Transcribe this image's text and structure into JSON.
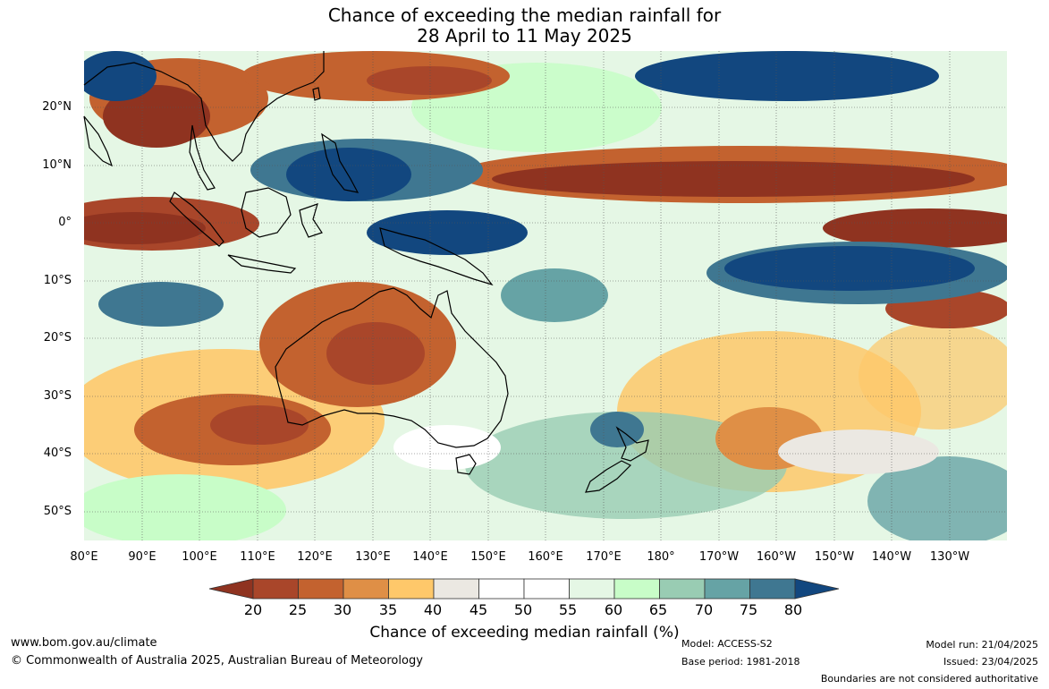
{
  "title": {
    "line1": "Chance of exceeding the median rainfall for",
    "line2": "28 April to 11 May 2025"
  },
  "map": {
    "lat_labels": [
      "20°N",
      "10°N",
      "0°",
      "10°S",
      "20°S",
      "30°S",
      "40°S",
      "50°S"
    ],
    "lon_labels": [
      "80°E",
      "90°E",
      "100°E",
      "110°E",
      "120°E",
      "130°E",
      "140°E",
      "150°E",
      "160°E",
      "170°E",
      "180°",
      "170°W",
      "160°W",
      "150°W",
      "140°W",
      "130°W"
    ]
  },
  "colorbar": {
    "ticks": [
      "20",
      "25",
      "30",
      "35",
      "40",
      "45",
      "50",
      "55",
      "60",
      "65",
      "70",
      "75",
      "80"
    ],
    "colors": [
      "#a9462a",
      "#c3622f",
      "#df8f46",
      "#fec86a",
      "#ebe8e2",
      "#ffffff",
      "#ffffff",
      "#e5f7e5",
      "#c8fdc8",
      "#99ccb3",
      "#66a3a5",
      "#3f7791"
    ],
    "under_color": "#8f3320",
    "over_color": "#12477f",
    "title": "Chance of exceeding median rainfall (%)"
  },
  "footer": {
    "website": "www.bom.gov.au/climate",
    "copyright": "© Commonwealth of Australia 2025, Australian Bureau of Meteorology",
    "model": "Model: ACCESS-S2",
    "base_period": "Base period: 1981-2018",
    "model_run": "Model run: 21/04/2025",
    "issued": "Issued: 23/04/2025",
    "disclaimer": "Boundaries are not considered authoritative"
  }
}
